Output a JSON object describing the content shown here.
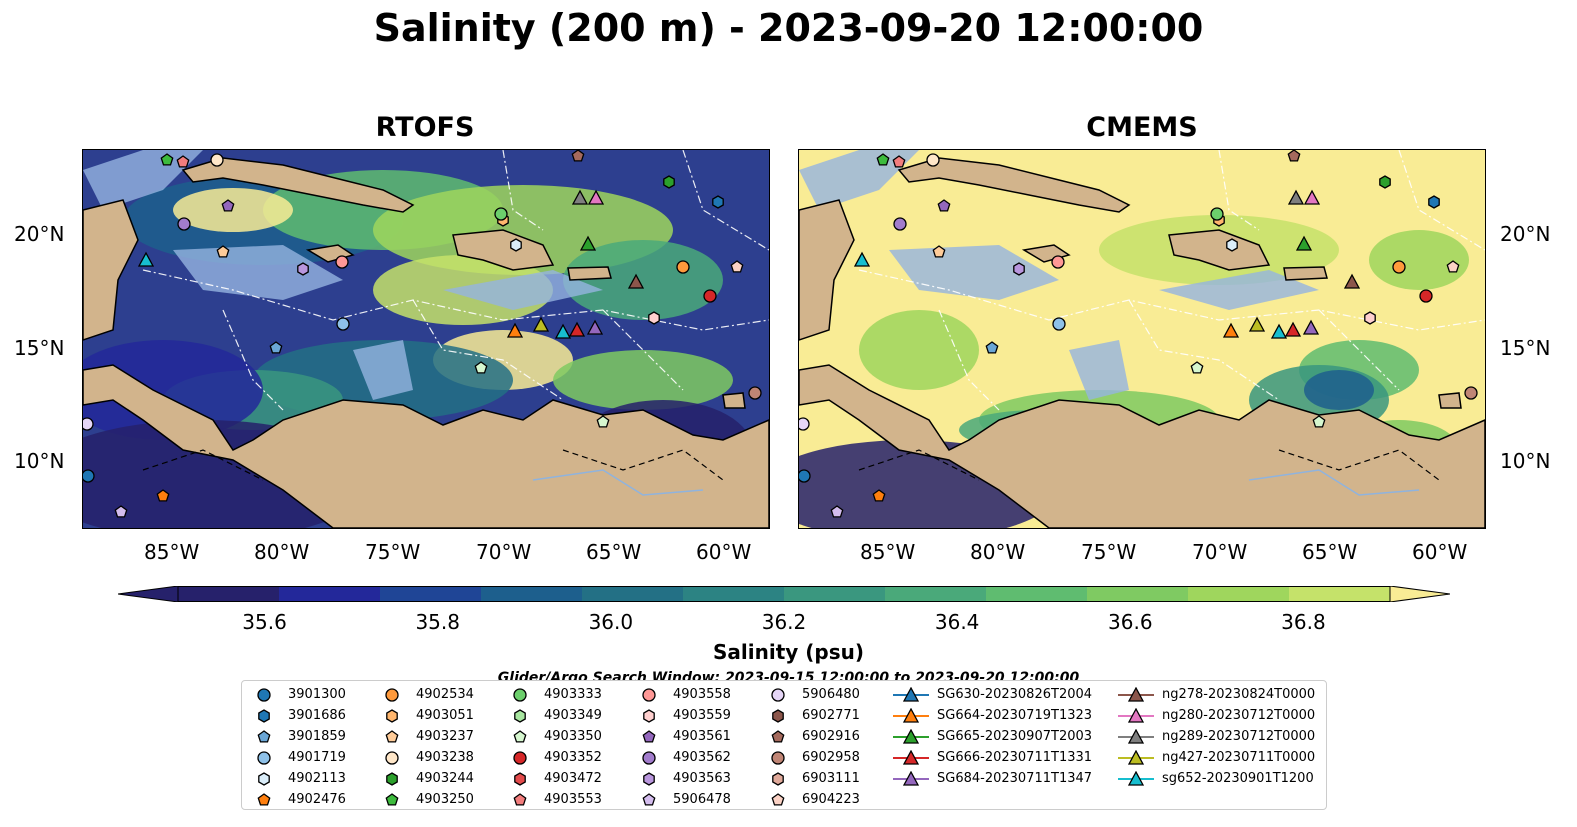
{
  "title": "Salinity (200 m) - 2023-09-20 12:00:00",
  "panels": [
    {
      "title": "RTOFS",
      "sea_color": "#2d3f8f"
    },
    {
      "title": "CMEMS",
      "sea_color": "#f9ec95"
    }
  ],
  "lon_ticks": [
    "85°W",
    "80°W",
    "75°W",
    "70°W",
    "65°W",
    "60°W"
  ],
  "lat_ticks": [
    "20°N",
    "15°N",
    "10°N"
  ],
  "colorbar": {
    "title": "Salinity (psu)",
    "tick_labels": [
      "35.6",
      "35.8",
      "36.0",
      "36.2",
      "36.4",
      "36.6",
      "36.8"
    ],
    "range": [
      35.5,
      36.9
    ],
    "colors": [
      "#26216b",
      "#23289a",
      "#1f4596",
      "#1d5f8d",
      "#237085",
      "#2c8383",
      "#3a977f",
      "#4aa97a",
      "#5fbc70",
      "#7fca62",
      "#9fd65d",
      "#c5e26a",
      "#f9ec95"
    ]
  },
  "search_window": "Glider/Argo Search Window: 2023-09-15 12:00:00 to 2023-09-20 12:00:00",
  "legend": {
    "columns": [
      [
        {
          "label": "3901300",
          "shape": "circle",
          "color": "#1f77b4"
        },
        {
          "label": "3901686",
          "shape": "hexagon",
          "color": "#1f77b4"
        },
        {
          "label": "3901859",
          "shape": "pentagon",
          "color": "#6aa6d6"
        },
        {
          "label": "4901719",
          "shape": "circle",
          "color": "#8ec1e8"
        },
        {
          "label": "4902113",
          "shape": "hexagon",
          "color": "#dbeefa"
        },
        {
          "label": "4902476",
          "shape": "pentagon",
          "color": "#ff7f0e"
        }
      ],
      [
        {
          "label": "4902534",
          "shape": "circle",
          "color": "#ff9a3c"
        },
        {
          "label": "4903051",
          "shape": "hexagon",
          "color": "#ffb66e"
        },
        {
          "label": "4903237",
          "shape": "pentagon",
          "color": "#ffcc99"
        },
        {
          "label": "4903238",
          "shape": "circle",
          "color": "#ffe7c9"
        },
        {
          "label": "4903244",
          "shape": "hexagon",
          "color": "#2ca02c"
        },
        {
          "label": "4903250",
          "shape": "pentagon",
          "color": "#3dbb3d"
        }
      ],
      [
        {
          "label": "4903333",
          "shape": "circle",
          "color": "#6ccf6c"
        },
        {
          "label": "4903349",
          "shape": "hexagon",
          "color": "#a8e6a0"
        },
        {
          "label": "4903350",
          "shape": "pentagon",
          "color": "#d6f7cf"
        },
        {
          "label": "4903352",
          "shape": "circle",
          "color": "#d62728"
        },
        {
          "label": "4903472",
          "shape": "hexagon",
          "color": "#e34a4b"
        },
        {
          "label": "4903553",
          "shape": "pentagon",
          "color": "#f27d7d"
        }
      ],
      [
        {
          "label": "4903558",
          "shape": "circle",
          "color": "#ff9896"
        },
        {
          "label": "4903559",
          "shape": "hexagon",
          "color": "#ffd0cf"
        },
        {
          "label": "4903561",
          "shape": "pentagon",
          "color": "#9467bd"
        },
        {
          "label": "4903562",
          "shape": "circle",
          "color": "#a27ccc"
        },
        {
          "label": "4903563",
          "shape": "hexagon",
          "color": "#b996dd"
        },
        {
          "label": "5906478",
          "shape": "pentagon",
          "color": "#d4bdee"
        }
      ],
      [
        {
          "label": "5906480",
          "shape": "circle",
          "color": "#e6d6f7"
        },
        {
          "label": "6902771",
          "shape": "hexagon",
          "color": "#8c564b"
        },
        {
          "label": "6902916",
          "shape": "pentagon",
          "color": "#a56a5d"
        },
        {
          "label": "6902958",
          "shape": "circle",
          "color": "#c08575"
        },
        {
          "label": "6903111",
          "shape": "hexagon",
          "color": "#e0a99a"
        },
        {
          "label": "6904223",
          "shape": "pentagon",
          "color": "#fbd2c5"
        }
      ],
      [
        {
          "label": "SG630-20230826T2004",
          "shape": "triangle-line",
          "color": "#1f77b4"
        },
        {
          "label": "SG664-20230719T1323",
          "shape": "triangle-line",
          "color": "#ff7f0e"
        },
        {
          "label": "SG665-20230907T2003",
          "shape": "triangle-line",
          "color": "#2ca02c"
        },
        {
          "label": "SG666-20230711T1331",
          "shape": "triangle-line",
          "color": "#d62728"
        },
        {
          "label": "SG684-20230711T1347",
          "shape": "triangle-line",
          "color": "#9467bd"
        }
      ],
      [
        {
          "label": "ng278-20230824T0000",
          "shape": "triangle-line",
          "color": "#8c564b"
        },
        {
          "label": "ng280-20230712T0000",
          "shape": "triangle-line",
          "color": "#e377c2"
        },
        {
          "label": "ng289-20230712T0000",
          "shape": "triangle-line",
          "color": "#7f7f7f"
        },
        {
          "label": "ng427-20230711T0000",
          "shape": "triangle-line",
          "color": "#bcbd22"
        },
        {
          "label": "sg652-20230901T1200",
          "shape": "triangle-line",
          "color": "#17becf"
        }
      ]
    ]
  }
}
